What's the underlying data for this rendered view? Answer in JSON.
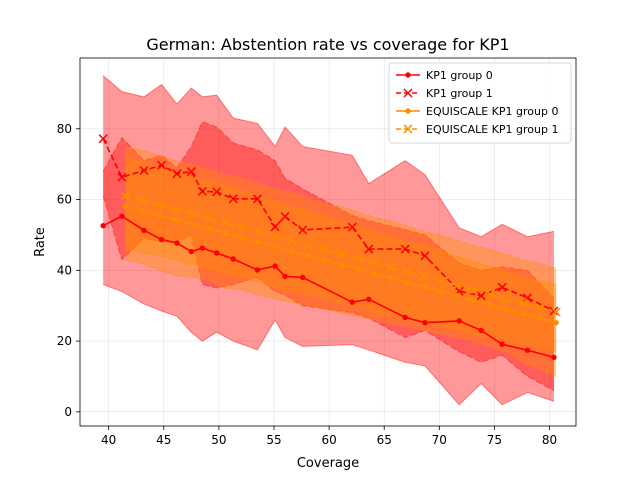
{
  "chart_data": {
    "type": "line",
    "title": "German: Abstention rate vs coverage for KP1",
    "xlabel": "Coverage",
    "ylabel": "Rate",
    "xlim": [
      37.4,
      82.4
    ],
    "ylim": [
      -4,
      100
    ],
    "xticks": [
      40,
      45,
      50,
      55,
      60,
      65,
      70,
      75,
      80
    ],
    "yticks": [
      0,
      20,
      40,
      60,
      80
    ],
    "grid": true,
    "legend_position": "top-right",
    "series": [
      {
        "name": "KP1 group 0",
        "color": "#ff0000",
        "linestyle": "solid",
        "marker": "dot",
        "x": [
          39.5,
          41.2,
          43.2,
          44.8,
          46.2,
          47.5,
          48.5,
          49.8,
          51.3,
          53.5,
          55.1,
          56.0,
          57.6,
          62.1,
          63.6,
          66.9,
          68.7,
          71.8,
          73.8,
          75.7,
          78.0,
          80.4
        ],
        "y": [
          52.6,
          55.3,
          51.3,
          48.7,
          47.7,
          45.3,
          46.3,
          44.9,
          43.2,
          40.1,
          41.2,
          38.3,
          38.0,
          31.0,
          31.8,
          26.7,
          25.2,
          25.7,
          23.0,
          19.1,
          17.4,
          15.4
        ],
        "band_lower": [
          36.0,
          34.0,
          30.5,
          28.5,
          27.0,
          22.5,
          20.0,
          22.5,
          20.0,
          17.5,
          26.0,
          21.0,
          18.5,
          19.0,
          17.5,
          14.0,
          13.0,
          2.0,
          8.0,
          2.0,
          5.5,
          3.0
        ],
        "band_upper": [
          95.0,
          90.5,
          89.0,
          92.5,
          87.0,
          91.5,
          89.0,
          89.5,
          83.0,
          81.5,
          75.0,
          80.5,
          75.0,
          72.5,
          64.5,
          71.0,
          67.0,
          52.0,
          49.5,
          53.0,
          49.5,
          51.0
        ]
      },
      {
        "name": "KP1 group 1",
        "color": "#ff0000",
        "linestyle": "dashed",
        "marker": "x",
        "x": [
          39.5,
          41.2,
          43.2,
          44.8,
          46.2,
          47.5,
          48.5,
          49.8,
          51.3,
          53.5,
          55.1,
          56.0,
          57.6,
          62.1,
          63.6,
          66.9,
          68.7,
          71.8,
          73.8,
          75.7,
          78.0,
          80.4
        ],
        "y": [
          77.2,
          66.3,
          68.2,
          69.7,
          67.3,
          67.9,
          62.3,
          62.2,
          60.2,
          60.2,
          52.3,
          55.2,
          51.4,
          52.2,
          46.0,
          46.0,
          44.1,
          34.1,
          32.8,
          35.2,
          32.2,
          28.5
        ],
        "band_lower": [
          61.0,
          43.0,
          49.0,
          48.0,
          48.0,
          50.0,
          36.0,
          35.0,
          36.0,
          38.0,
          34.0,
          33.0,
          30.0,
          28.0,
          26.5,
          21.0,
          23.0,
          17.0,
          14.0,
          16.0,
          10.0,
          6.0
        ],
        "band_upper": [
          68.0,
          77.5,
          71.0,
          72.5,
          69.0,
          75.0,
          82.0,
          80.5,
          76.0,
          74.0,
          71.0,
          66.0,
          63.0,
          55.5,
          54.0,
          51.5,
          50.0,
          42.0,
          40.0,
          41.0,
          40.0,
          32.0
        ]
      },
      {
        "name": "EQUISCALE KP1 group 0",
        "color": "#ff8c00",
        "linestyle": "solid",
        "marker": "dot",
        "x": [
          41.5,
          43.0,
          44.6,
          46.1,
          47.6,
          49.1,
          50.6,
          52.1,
          53.6,
          55.1,
          56.6,
          58.1,
          59.6,
          61.1,
          62.6,
          64.1,
          65.6,
          67.1,
          68.6,
          70.1,
          71.6,
          73.1,
          74.6,
          76.1,
          77.6,
          79.1,
          80.6
        ],
        "y": [
          58.0,
          56.8,
          55.5,
          54.3,
          53.0,
          51.8,
          50.5,
          49.2,
          48.0,
          46.7,
          45.4,
          44.2,
          42.9,
          41.6,
          40.4,
          39.1,
          37.8,
          36.6,
          35.3,
          34.0,
          32.8,
          31.5,
          30.3,
          29.0,
          27.7,
          26.5,
          25.2
        ],
        "band_lower": [
          43.0,
          42.0,
          40.0,
          38.5,
          38.0,
          37.0,
          35.0,
          34.5,
          33.0,
          32.0,
          31.0,
          30.0,
          29.0,
          28.0,
          27.0,
          26.0,
          25.0,
          24.0,
          23.0,
          22.0,
          21.0,
          20.0,
          18.5,
          17.0,
          14.0,
          12.0,
          10.0
        ],
        "band_upper": [
          72.0,
          70.5,
          69.0,
          68.0,
          66.5,
          65.5,
          64.0,
          62.5,
          61.0,
          59.5,
          58.0,
          57.0,
          55.5,
          54.0,
          52.5,
          51.0,
          49.5,
          48.0,
          47.0,
          45.5,
          44.0,
          42.5,
          41.0,
          39.5,
          38.0,
          37.0,
          36.0
        ]
      },
      {
        "name": "EQUISCALE KP1 group 1",
        "color": "#ff8c00",
        "linestyle": "dashed",
        "marker": "x",
        "x": [
          41.5,
          43.0,
          44.6,
          46.1,
          47.6,
          49.1,
          50.6,
          52.1,
          53.6,
          55.1,
          56.6,
          58.1,
          59.6,
          61.1,
          62.6,
          64.1,
          65.6,
          67.1,
          68.6,
          70.1,
          71.6,
          73.1,
          74.6,
          76.1,
          77.6,
          79.1,
          80.6
        ],
        "y": [
          61.0,
          59.7,
          58.5,
          57.2,
          55.9,
          54.7,
          53.4,
          52.2,
          50.9,
          49.6,
          48.4,
          47.1,
          45.8,
          44.6,
          43.3,
          42.0,
          40.8,
          39.5,
          38.3,
          37.0,
          35.7,
          34.5,
          33.2,
          31.9,
          30.7,
          29.4,
          28.2
        ],
        "band_lower": [
          46.0,
          45.0,
          44.0,
          43.0,
          41.5,
          40.5,
          39.0,
          38.0,
          36.5,
          35.5,
          34.0,
          33.0,
          32.0,
          30.5,
          29.5,
          28.0,
          27.0,
          26.0,
          25.0,
          24.0,
          23.0,
          22.0,
          21.0,
          20.0,
          19.0,
          18.0,
          17.0
        ],
        "band_upper": [
          75.0,
          74.0,
          72.5,
          71.0,
          70.0,
          68.5,
          67.0,
          66.0,
          64.5,
          63.0,
          62.0,
          60.5,
          59.0,
          58.0,
          56.5,
          55.0,
          54.0,
          52.5,
          51.0,
          50.0,
          48.5,
          47.0,
          46.0,
          44.5,
          43.0,
          42.0,
          40.5
        ]
      }
    ]
  }
}
